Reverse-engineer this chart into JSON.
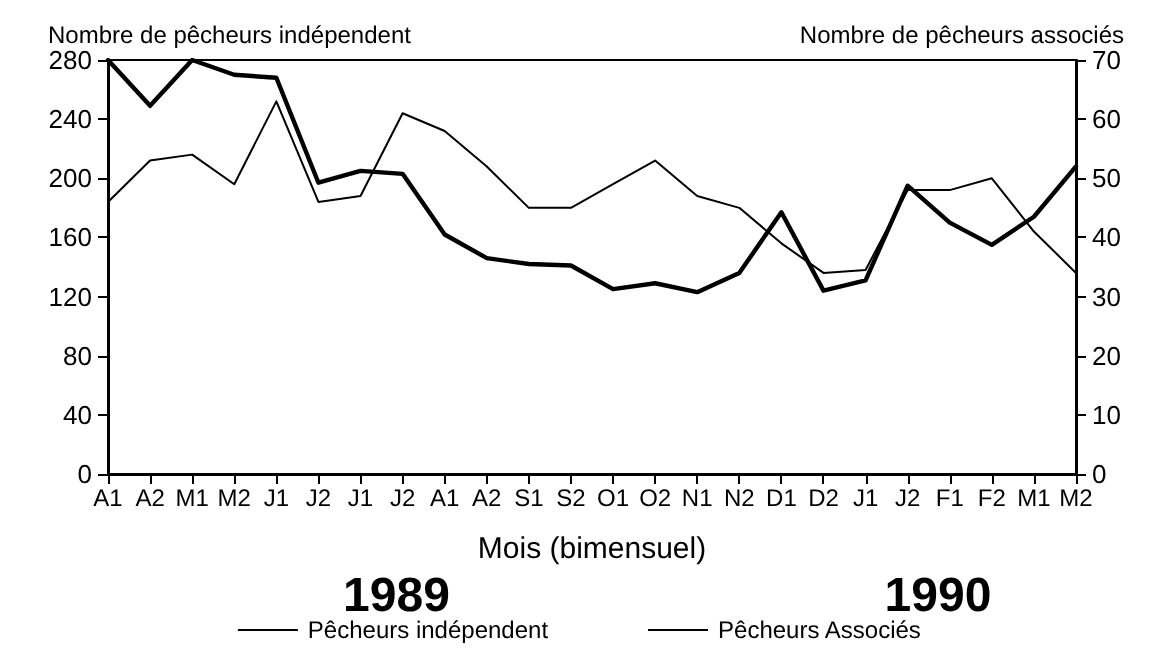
{
  "chart_data": {
    "type": "line",
    "ylabel": "Nombre de pêcheurs indépendent",
    "y2label": "Nombre de pêcheurs associés",
    "xlabel": "Mois (bimensuel)",
    "annotations": [
      "1989",
      "1990"
    ],
    "categories": [
      "A1",
      "A2",
      "M1",
      "M2",
      "J1",
      "J2",
      "J1",
      "J2",
      "A1",
      "A2",
      "S1",
      "S2",
      "O1",
      "O2",
      "N1",
      "N2",
      "D1",
      "D2",
      "J1",
      "J2",
      "F1",
      "F2",
      "M1",
      "M2"
    ],
    "series": [
      {
        "name": "Pêcheurs indépendent",
        "color": "#000000",
        "values": [
          280,
          249,
          280,
          270,
          268,
          197,
          205,
          203,
          162,
          146,
          142,
          141,
          125,
          129,
          123,
          136,
          177,
          124,
          131,
          195,
          170,
          155,
          174,
          208
        ]
      },
      {
        "name": "Pêcheurs Associés",
        "color": "#000000",
        "axis": "y2",
        "values": [
          46,
          53,
          54,
          49,
          63,
          46,
          47,
          61,
          58,
          52,
          45,
          45,
          49,
          53,
          47,
          45,
          39,
          34,
          34.5,
          48,
          48,
          50,
          41,
          34
        ]
      }
    ],
    "ylim": [
      0,
      280
    ],
    "yticks": [
      0,
      40,
      80,
      120,
      160,
      200,
      240,
      280
    ],
    "y2lim": [
      0,
      70
    ],
    "y2ticks": [
      0,
      10,
      20,
      30,
      40,
      50,
      60,
      70
    ],
    "grid": false,
    "legend": "bottom",
    "marker": "none",
    "line_style": "solid"
  }
}
